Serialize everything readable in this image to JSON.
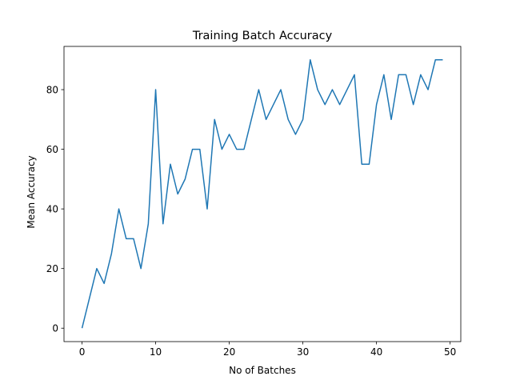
{
  "chart_data": {
    "type": "line",
    "title": "Training Batch Accuracy",
    "xlabel": "No of Batches",
    "ylabel": "Mean Accuracy",
    "xlim": [
      -2.45,
      51.45
    ],
    "ylim": [
      -4.5,
      94.5
    ],
    "xticks": [
      0,
      10,
      20,
      30,
      40,
      50
    ],
    "yticks": [
      0,
      20,
      40,
      60,
      80
    ],
    "grid": false,
    "series": [
      {
        "color": "#1f77b4",
        "x": [
          0,
          1,
          2,
          3,
          4,
          5,
          6,
          7,
          8,
          9,
          10,
          11,
          12,
          13,
          14,
          15,
          16,
          17,
          18,
          19,
          20,
          21,
          22,
          23,
          24,
          25,
          26,
          27,
          28,
          29,
          30,
          31,
          32,
          33,
          34,
          35,
          36,
          37,
          38,
          39,
          40,
          41,
          42,
          43,
          44,
          45,
          46,
          47,
          48,
          49
        ],
        "y": [
          0,
          10,
          20,
          15,
          25,
          40,
          30,
          30,
          20,
          35,
          80,
          35,
          55,
          45,
          50,
          60,
          60,
          40,
          70,
          60,
          65,
          60,
          60,
          70,
          80,
          70,
          75,
          80,
          70,
          65,
          70,
          90,
          80,
          75,
          80,
          75,
          80,
          85,
          55,
          55,
          75,
          85,
          70,
          85,
          85,
          75,
          85,
          80,
          90,
          90
        ]
      }
    ]
  }
}
